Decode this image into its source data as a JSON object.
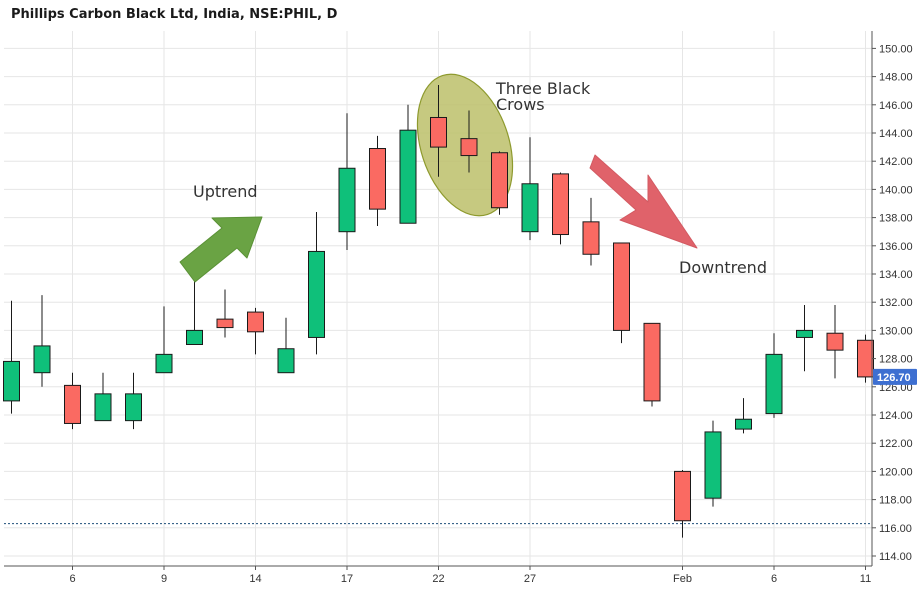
{
  "chart_data": {
    "type": "candlestick",
    "title": "Phillips Carbon Black Ltd, India, NSE:PHIL, D",
    "y_range": [
      113,
      151
    ],
    "y_ticks": [
      "114.00",
      "116.00",
      "118.00",
      "120.00",
      "122.00",
      "124.00",
      "126.00",
      "128.00",
      "130.00",
      "132.00",
      "134.00",
      "136.00",
      "138.00",
      "140.00",
      "142.00",
      "144.00",
      "146.00",
      "148.00",
      "150.00"
    ],
    "x_ticks": [
      {
        "index": 2,
        "label": "6"
      },
      {
        "index": 5,
        "label": "9"
      },
      {
        "index": 8,
        "label": "14"
      },
      {
        "index": 11,
        "label": "17"
      },
      {
        "index": 14,
        "label": "22"
      },
      {
        "index": 17,
        "label": "27"
      },
      {
        "index": 22,
        "label": "Feb"
      },
      {
        "index": 25,
        "label": "6"
      },
      {
        "index": 28,
        "label": "11"
      }
    ],
    "candles": [
      {
        "open": 125.0,
        "high": 132.1,
        "low": 124.1,
        "close": 127.8
      },
      {
        "open": 127.0,
        "high": 132.5,
        "low": 126.0,
        "close": 128.9
      },
      {
        "open": 126.1,
        "high": 127.0,
        "low": 123.0,
        "close": 123.4
      },
      {
        "open": 123.6,
        "high": 127.0,
        "low": 123.6,
        "close": 125.5
      },
      {
        "open": 123.6,
        "high": 127.0,
        "low": 123.0,
        "close": 125.5
      },
      {
        "open": 127.0,
        "high": 131.7,
        "low": 127.0,
        "close": 128.3
      },
      {
        "open": 129.0,
        "high": 134.7,
        "low": 129.0,
        "close": 130.0
      },
      {
        "open": 130.8,
        "high": 132.9,
        "low": 129.5,
        "close": 130.2
      },
      {
        "open": 131.3,
        "high": 131.6,
        "low": 128.3,
        "close": 129.9
      },
      {
        "open": 127.0,
        "high": 130.9,
        "low": 127.0,
        "close": 128.7
      },
      {
        "open": 129.5,
        "high": 138.4,
        "low": 128.3,
        "close": 135.6
      },
      {
        "open": 137.0,
        "high": 145.4,
        "low": 135.7,
        "close": 141.5
      },
      {
        "open": 142.9,
        "high": 143.8,
        "low": 137.4,
        "close": 138.6
      },
      {
        "open": 137.6,
        "high": 146.0,
        "low": 137.6,
        "close": 144.2
      },
      {
        "open": 145.1,
        "high": 147.4,
        "low": 140.9,
        "close": 143.0
      },
      {
        "open": 143.6,
        "high": 145.6,
        "low": 141.2,
        "close": 142.4
      },
      {
        "open": 142.6,
        "high": 142.7,
        "low": 138.2,
        "close": 138.7
      },
      {
        "open": 137.0,
        "high": 143.7,
        "low": 136.4,
        "close": 140.4
      },
      {
        "open": 141.1,
        "high": 141.2,
        "low": 136.1,
        "close": 136.8
      },
      {
        "open": 137.7,
        "high": 139.4,
        "low": 134.6,
        "close": 135.4
      },
      {
        "open": 136.2,
        "high": 136.2,
        "low": 129.1,
        "close": 130.0
      },
      {
        "open": 130.5,
        "high": 130.5,
        "low": 124.6,
        "close": 125.0
      },
      {
        "open": 120.0,
        "high": 120.1,
        "low": 115.3,
        "close": 116.5
      },
      {
        "open": 118.1,
        "high": 123.6,
        "low": 117.5,
        "close": 122.8
      },
      {
        "open": 123.0,
        "high": 125.2,
        "low": 122.7,
        "close": 123.7
      },
      {
        "open": 124.1,
        "high": 129.8,
        "low": 123.8,
        "close": 128.3
      },
      {
        "open": 129.5,
        "high": 131.8,
        "low": 127.1,
        "close": 130.0
      },
      {
        "open": 129.8,
        "high": 131.8,
        "low": 126.6,
        "close": 128.6
      },
      {
        "open": 129.3,
        "high": 129.7,
        "low": 126.3,
        "close": 126.7
      }
    ],
    "last_price": "126.70",
    "horizontal_line": 116.3,
    "annotations": {
      "uptrend": "Uptrend",
      "downtrend": "Downtrend",
      "three_black_crows_line1": "Three Black",
      "three_black_crows_line2": "Crows"
    },
    "colors": {
      "up": "#0fc07a",
      "down": "#fa6a62",
      "candle_border": "#1a1a1a",
      "grid": "#e6e6e6",
      "axis": "#555555",
      "price_label_bg": "#3d6fd1",
      "hline": "#1f4e79",
      "up_arrow": "#6aa344",
      "down_arrow": "#e0626a",
      "ellipse_fill": "#bcc06a",
      "ellipse_stroke": "#8e9a2e"
    }
  }
}
